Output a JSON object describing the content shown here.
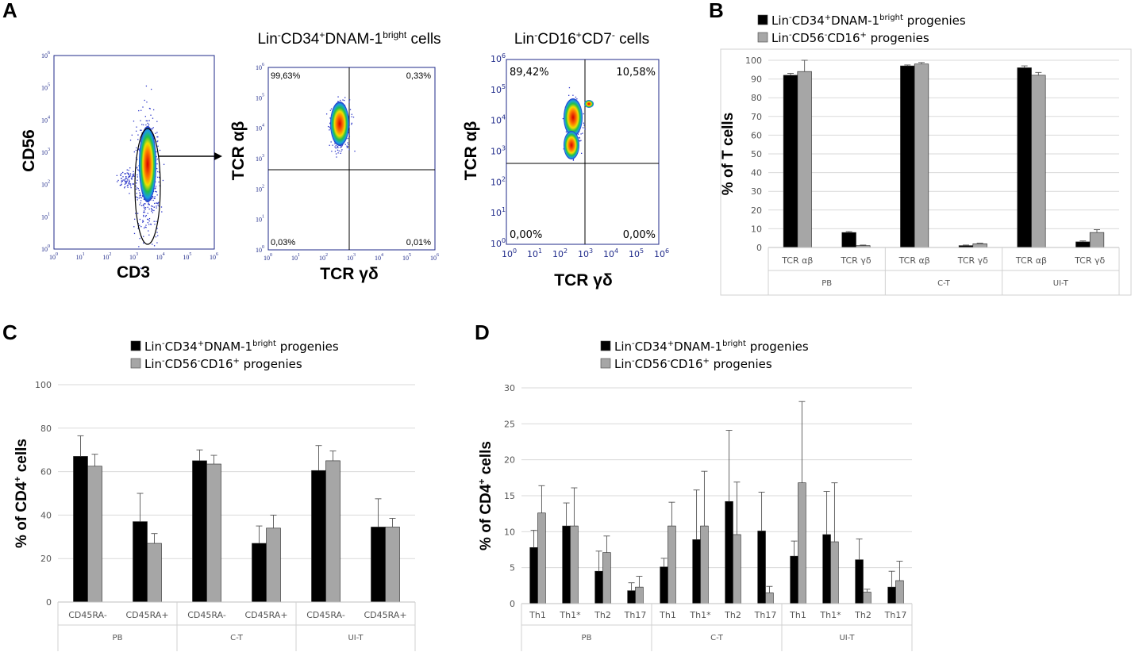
{
  "panels": {
    "A": "A",
    "B": "B",
    "C": "C",
    "D": "D"
  },
  "colors": {
    "dots": "#2b35c8",
    "series1": "#000000",
    "series2": "#a6a6a6",
    "grid": "#d9d9d9",
    "axis": "#1f2a8a"
  },
  "flow": {
    "p1": {
      "ylabel": "CD56",
      "xlabel": "CD3",
      "xticks": [
        "10",
        "10",
        "10",
        "10",
        "10",
        "10",
        "10"
      ],
      "exp": [
        "0",
        "1",
        "2",
        "3",
        "4",
        "5",
        "6"
      ]
    },
    "p2": {
      "title_pre": "Lin",
      "title_sup1": "-",
      "title_mid": "CD34",
      "title_sup2": "+",
      "title_post": "DNAM-1",
      "title_sup3": "bright",
      "title_end": " cells",
      "ylabel": "TCR αβ",
      "xlabel": "TCR γδ",
      "q_ul": "99,63%",
      "q_ur": "0,33%",
      "q_ll": "0,03%",
      "q_lr": "0,01%"
    },
    "p3": {
      "title_pre": "Lin",
      "title_sup1": "-",
      "title_mid": "CD16",
      "title_sup2": "+",
      "title_post": "CD7",
      "title_sup3": "-",
      "title_end": " cells",
      "ylabel": "TCR αβ",
      "xlabel": "TCR γδ",
      "q_ul": "89,42%",
      "q_ur": "10,58%",
      "q_ll": "0,00%",
      "q_lr": "0,00%"
    }
  },
  "legend": {
    "s1_pre": "Lin",
    "s1_sup1": "-",
    "s1_mid": "CD34",
    "s1_sup2": "+",
    "s1_post": "DNAM-1",
    "s1_sup3": "bright",
    "s1_end": " progenies",
    "s2_pre": "Lin",
    "s2_sup1": "-",
    "s2_mid": "CD56",
    "s2_sup2": "-",
    "s2_post": "CD16",
    "s2_sup3": "+",
    "s2_end": " progenies"
  },
  "chart_data": [
    {
      "id": "B",
      "type": "bar",
      "ylabel": "% of T cells",
      "ylim": [
        0,
        100
      ],
      "yticks": [
        0,
        10,
        20,
        30,
        40,
        50,
        60,
        70,
        80,
        90,
        100
      ],
      "groups": [
        "PB",
        "C-T",
        "UI-T"
      ],
      "categories": [
        "TCR αβ",
        "TCR γδ",
        "TCR αβ",
        "TCR γδ",
        "TCR αβ",
        "TCR γδ"
      ],
      "series": [
        {
          "name": "Lin-CD34+DNAM-1bright progenies",
          "values": [
            92,
            8,
            97,
            1,
            96,
            3
          ],
          "errors": [
            1,
            0.5,
            0.5,
            0.3,
            1,
            0.5
          ]
        },
        {
          "name": "Lin-CD56-CD16+ progenies",
          "values": [
            94,
            1,
            98,
            2,
            92,
            8
          ],
          "errors": [
            6,
            0.3,
            0.8,
            0.3,
            1.5,
            1.5
          ]
        }
      ]
    },
    {
      "id": "C",
      "type": "bar",
      "ylabel": "% of CD4+ cells",
      "ylim": [
        0,
        100
      ],
      "yticks": [
        0,
        20,
        40,
        60,
        80,
        100
      ],
      "groups": [
        "PB",
        "C-T",
        "UI-T"
      ],
      "categories": [
        "CD45RA-",
        "CD45RA+",
        "CD45RA-",
        "CD45RA+",
        "CD45RA-",
        "CD45RA+"
      ],
      "series": [
        {
          "name": "Lin-CD34+DNAM-1bright progenies",
          "values": [
            67,
            37,
            65,
            27,
            60.5,
            34.5
          ],
          "errors": [
            9.5,
            13,
            5,
            8,
            11.5,
            13
          ]
        },
        {
          "name": "Lin-CD56-CD16+ progenies",
          "values": [
            62.5,
            27,
            63.5,
            34,
            65,
            34.5
          ],
          "errors": [
            5.5,
            4.5,
            4,
            6,
            4.5,
            4
          ]
        }
      ]
    },
    {
      "id": "D",
      "type": "bar",
      "ylabel": "% of CD4+ cells",
      "ylim": [
        0,
        30
      ],
      "yticks": [
        0,
        5,
        10,
        15,
        20,
        25,
        30
      ],
      "groups": [
        "PB",
        "C-T",
        "UI-T"
      ],
      "categories": [
        "Th1",
        "Th1*",
        "Th2",
        "Th17",
        "Th1",
        "Th1*",
        "Th2",
        "Th17",
        "Th1",
        "Th1*",
        "Th2",
        "Th17"
      ],
      "series": [
        {
          "name": "Lin-CD34+DNAM-1bright progenies",
          "values": [
            7.8,
            10.8,
            4.5,
            1.8,
            5.1,
            8.9,
            14.2,
            10.1,
            6.6,
            9.6,
            6.1,
            2.3
          ],
          "errors": [
            2.4,
            3.2,
            2.8,
            1.1,
            1.2,
            6.9,
            9.9,
            5.4,
            2.1,
            6,
            2.9,
            2.2
          ]
        },
        {
          "name": "Lin-CD56-CD16+ progenies",
          "values": [
            12.6,
            10.8,
            7.1,
            2.3,
            10.8,
            10.8,
            9.6,
            1.5,
            16.8,
            8.6,
            1.6,
            3.2
          ],
          "errors": [
            3.8,
            5.3,
            2.3,
            1.5,
            3.3,
            7.6,
            7.3,
            0.9,
            11.3,
            8.2,
            0.4,
            2.7
          ]
        }
      ]
    }
  ]
}
